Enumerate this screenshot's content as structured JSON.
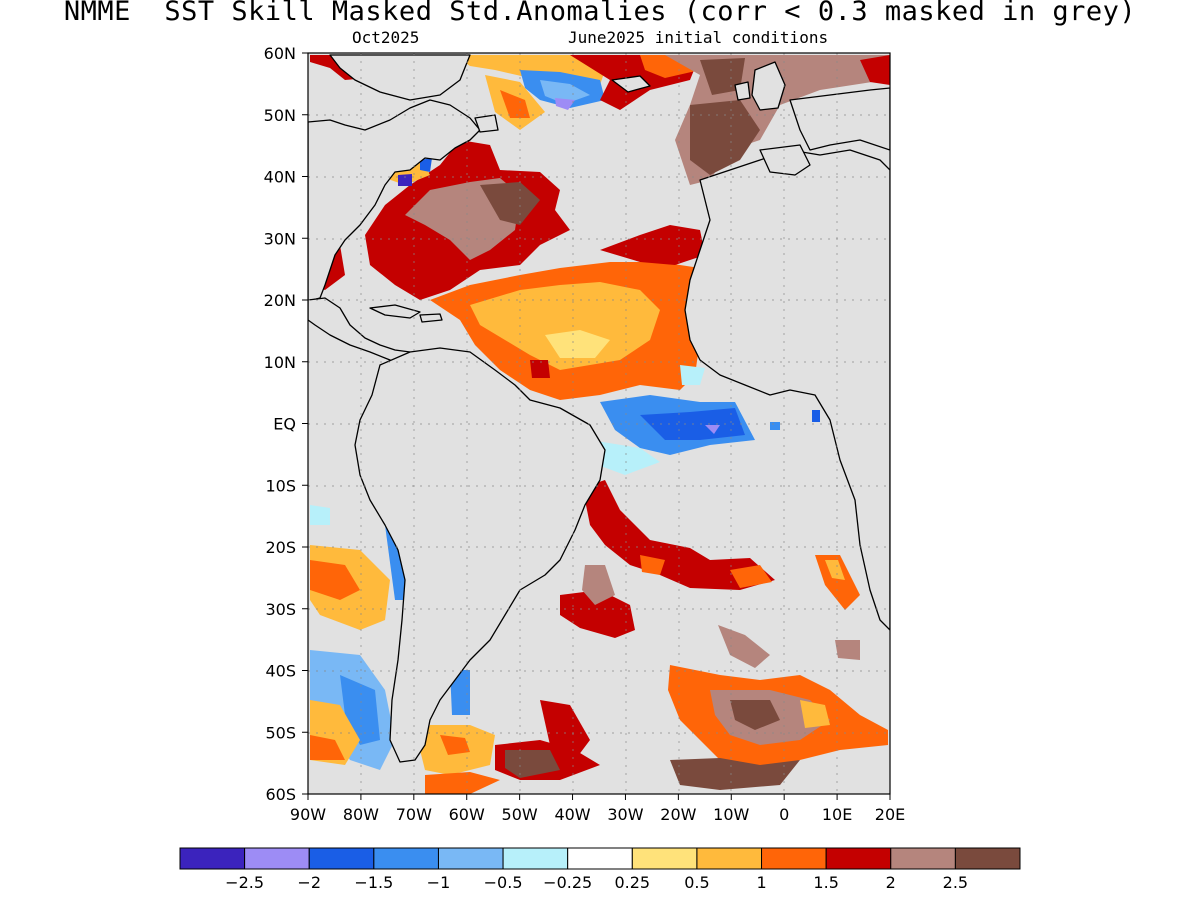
{
  "header": {
    "title": "NMME  SST Skill Masked Std.Anomalies (corr < 0.3 masked in grey)",
    "target_month": "Oct2025",
    "init_conditions": "June2025 initial conditions"
  },
  "axes": {
    "lat_labels": [
      "60N",
      "50N",
      "40N",
      "30N",
      "20N",
      "10N",
      "EQ",
      "10S",
      "20S",
      "30S",
      "40S",
      "50S",
      "60S"
    ],
    "lon_labels": [
      "90W",
      "80W",
      "70W",
      "60W",
      "50W",
      "40W",
      "30W",
      "20W",
      "10W",
      "0",
      "10E",
      "20E"
    ]
  },
  "colorbar": {
    "colors": [
      "#3b23bd",
      "#9d8cf5",
      "#1a5ee6",
      "#3a8ef0",
      "#79b8f5",
      "#b7f0fa",
      "#ffffff",
      "#ffe27a",
      "#ffba3c",
      "#ff6508",
      "#c40000",
      "#b5857d",
      "#7a4a3d"
    ],
    "labels": [
      "-2.5",
      "-2",
      "-1.5",
      "-1",
      "-0.5",
      "-0.25",
      "0.25",
      "0.5",
      "1",
      "1.5",
      "2",
      "2.5"
    ]
  },
  "map": {
    "mask_color": "#e1e1e1",
    "land_color": "#e1e1e1",
    "lon_range": [
      -90,
      20
    ],
    "lat_range": [
      -60,
      60
    ]
  }
}
